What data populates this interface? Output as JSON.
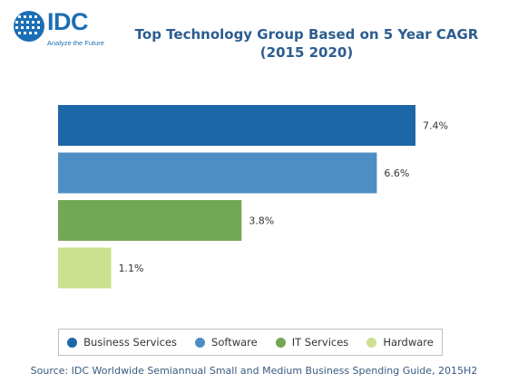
{
  "logo": {
    "text": "IDC",
    "tagline": "Analyze the Future"
  },
  "chart_data": {
    "type": "bar",
    "orientation": "horizontal",
    "title": "Top Technology Group Based on 5 Year CAGR (2015 2020)",
    "categories": [
      "Business Services",
      "Software",
      "IT Services",
      "Hardware"
    ],
    "values": [
      7.4,
      6.6,
      3.8,
      1.1
    ],
    "value_labels": [
      "7.4%",
      "6.6%",
      "3.8%",
      "1.1%"
    ],
    "colors": [
      "#1c67a8",
      "#4d8fc5",
      "#72a855",
      "#cde08f"
    ],
    "xlim": [
      0,
      8
    ],
    "xlabel": "",
    "ylabel": "",
    "grid": false,
    "legend_position": "bottom"
  },
  "source": "Source: IDC Worldwide Semiannual Small and Medium Business Spending Guide, 2015H2"
}
